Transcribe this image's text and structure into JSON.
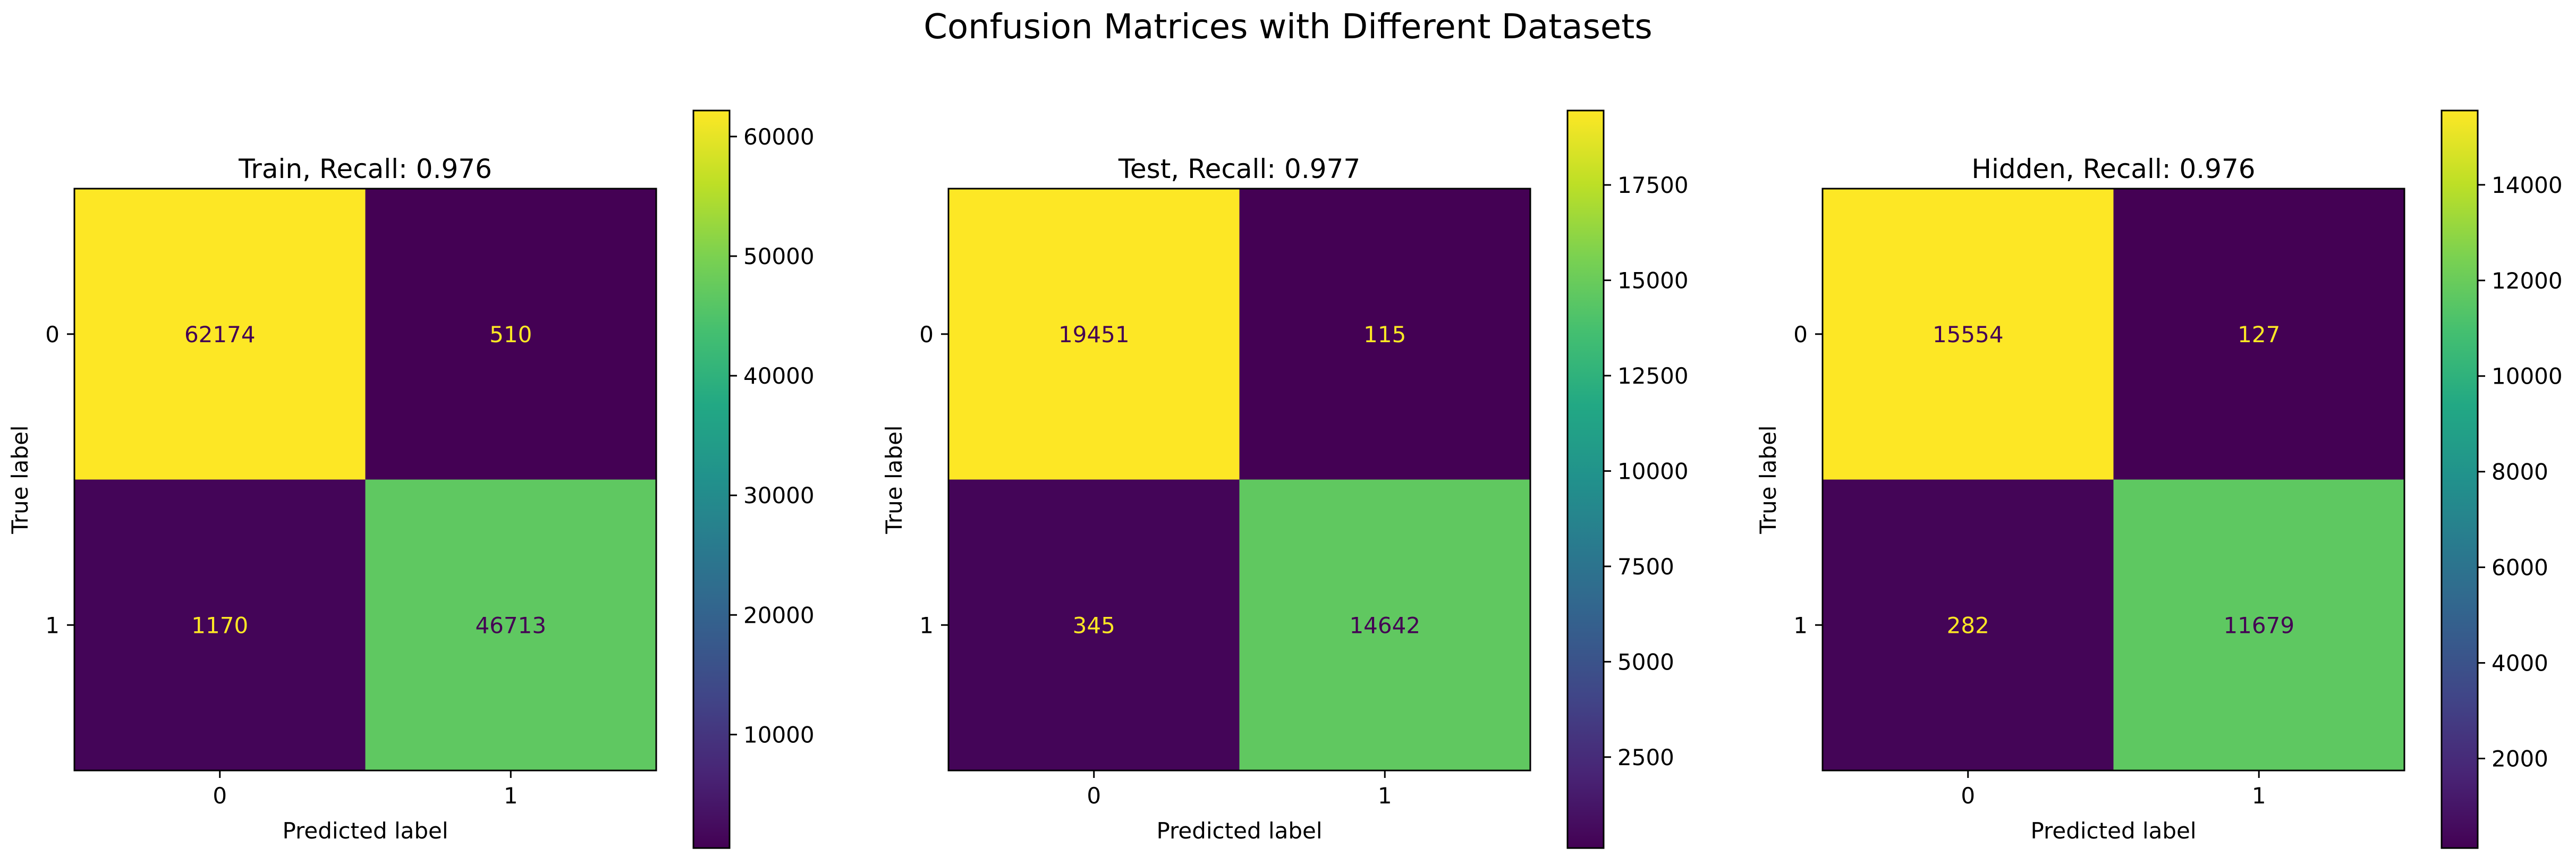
{
  "figure": {
    "title": "Confusion Matrices with Different Datasets"
  },
  "chart_data": [
    {
      "type": "heatmap",
      "title": "Train, Recall: 0.976",
      "xlabel": "Predicted label",
      "ylabel": "True label",
      "x_categories": [
        "0",
        "1"
      ],
      "y_categories": [
        "0",
        "1"
      ],
      "matrix": [
        [
          62174,
          510
        ],
        [
          1170,
          46713
        ]
      ],
      "colormap": "viridis",
      "colorbar": {
        "ticks": [
          10000,
          20000,
          30000,
          40000,
          50000,
          60000
        ],
        "tick_labels": [
          "10000",
          "20000",
          "30000",
          "40000",
          "50000",
          "60000"
        ],
        "range": [
          510,
          62174
        ]
      },
      "grid": false
    },
    {
      "type": "heatmap",
      "title": "Test, Recall: 0.977",
      "xlabel": "Predicted label",
      "ylabel": "True label",
      "x_categories": [
        "0",
        "1"
      ],
      "y_categories": [
        "0",
        "1"
      ],
      "matrix": [
        [
          19451,
          115
        ],
        [
          345,
          14642
        ]
      ],
      "colormap": "viridis",
      "colorbar": {
        "ticks": [
          2500,
          5000,
          7500,
          10000,
          12500,
          15000,
          17500
        ],
        "tick_labels": [
          "2500",
          "5000",
          "7500",
          "10000",
          "12500",
          "15000",
          "17500"
        ],
        "range": [
          115,
          19451
        ]
      },
      "grid": false
    },
    {
      "type": "heatmap",
      "title": "Hidden, Recall: 0.976",
      "xlabel": "Predicted label",
      "ylabel": "True label",
      "x_categories": [
        "0",
        "1"
      ],
      "y_categories": [
        "0",
        "1"
      ],
      "matrix": [
        [
          15554,
          127
        ],
        [
          282,
          11679
        ]
      ],
      "colormap": "viridis",
      "colorbar": {
        "ticks": [
          2000,
          4000,
          6000,
          8000,
          10000,
          12000,
          14000
        ],
        "tick_labels": [
          "2000",
          "4000",
          "6000",
          "8000",
          "10000",
          "12000",
          "14000"
        ],
        "range": [
          127,
          15554
        ]
      },
      "grid": false
    }
  ]
}
